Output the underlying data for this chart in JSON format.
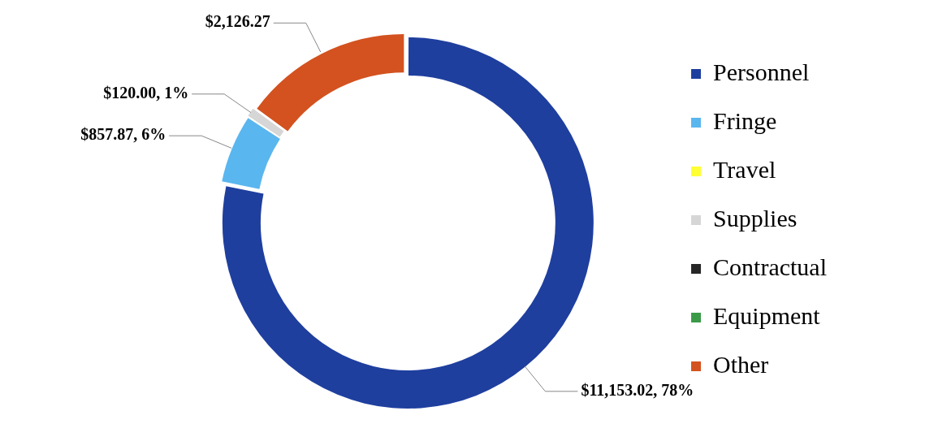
{
  "chart_data": {
    "type": "donut",
    "categories": [
      "Personnel",
      "Fringe",
      "Travel",
      "Supplies",
      "Contractual",
      "Equipment",
      "Other"
    ],
    "values": [
      11153.02,
      857.87,
      0,
      120.0,
      0,
      0,
      2126.27
    ],
    "colors": [
      "#1f3f9e",
      "#5ab6ee",
      "#ffff33",
      "#d6d6d6",
      "#262626",
      "#3a9a48",
      "#d3521f"
    ],
    "value_labels": [
      "$11,153.02, 78%",
      "$857.87, 6%",
      null,
      "$120.00, 1%",
      null,
      null,
      "$2,126.27"
    ],
    "legend": "right"
  }
}
